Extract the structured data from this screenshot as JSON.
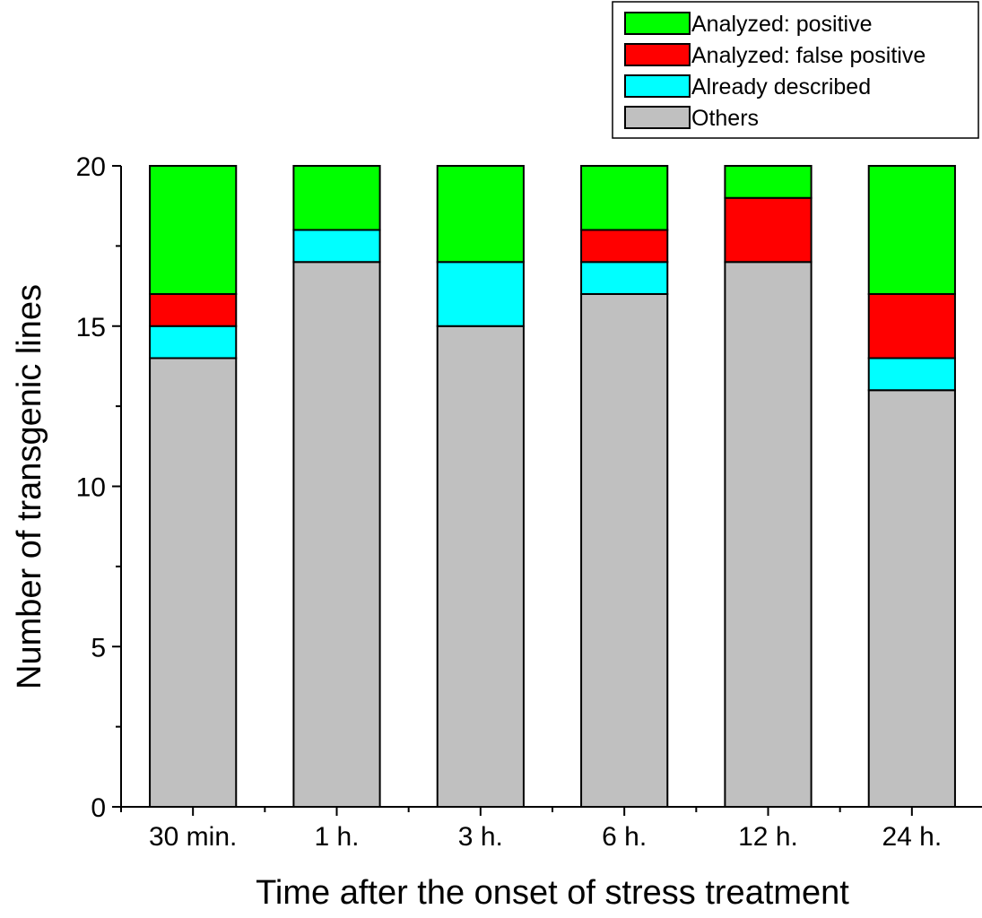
{
  "chart_data": {
    "type": "bar",
    "stacked": true,
    "title": "",
    "xlabel": "Time after the onset of stress treatment",
    "ylabel": "Number of transgenic lines",
    "ylim": [
      0,
      20
    ],
    "yticks": [
      0,
      5,
      10,
      15,
      20
    ],
    "categories": [
      "30 min.",
      "1 h.",
      "3 h.",
      "6 h.",
      "12 h.",
      "24 h."
    ],
    "series": [
      {
        "name": "Others",
        "color": "#c0c0c0",
        "values": [
          14,
          17,
          15,
          16,
          17,
          13
        ]
      },
      {
        "name": "Already described",
        "color": "#00ffff",
        "values": [
          1,
          1,
          2,
          1,
          0,
          1
        ]
      },
      {
        "name": "Analyzed: false positive",
        "color": "#ff0000",
        "values": [
          1,
          0,
          0,
          1,
          2,
          2
        ]
      },
      {
        "name": "Analyzed: positive",
        "color": "#00ff00",
        "values": [
          4,
          2,
          3,
          2,
          1,
          4
        ]
      }
    ],
    "legend": {
      "placement": "top-right",
      "order": [
        "Analyzed: positive",
        "Analyzed: false positive",
        "Already described",
        "Others"
      ]
    },
    "grid": false
  }
}
